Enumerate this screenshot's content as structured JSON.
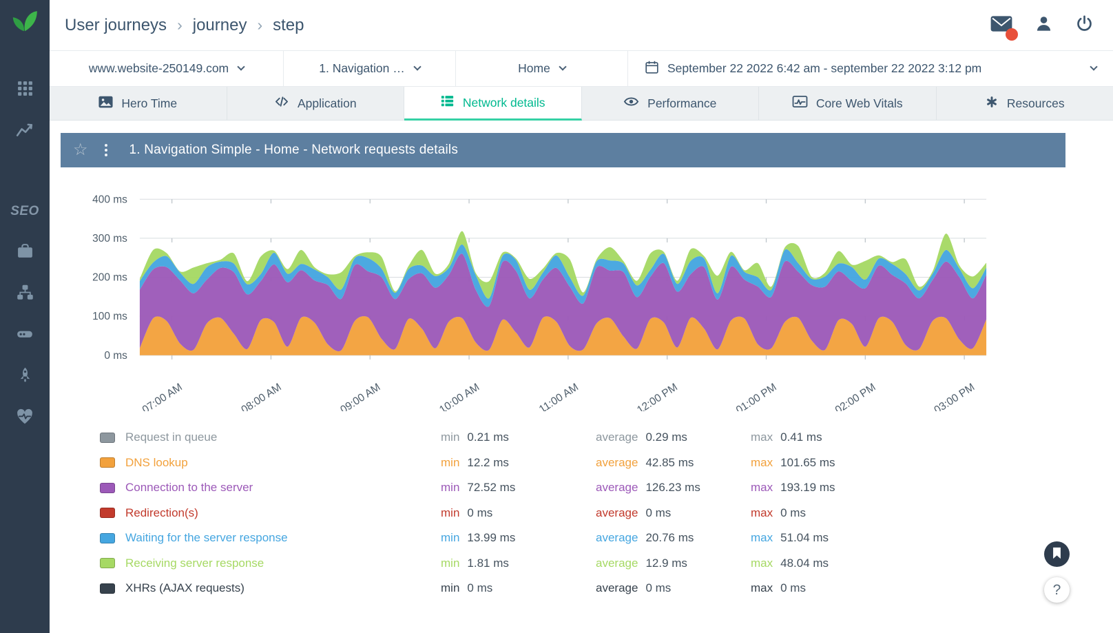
{
  "colors": {
    "accent": "#00b98f",
    "accent_underline": "#35d1a5",
    "sidebar_bg": "#2e3c4d",
    "logo_green": "#3db54a",
    "panel_header_bg": "#5d7fa0",
    "badge_red": "#e8503a"
  },
  "sidebar": {
    "seo_label": "SEO"
  },
  "header": {
    "breadcrumb": [
      "User journeys",
      "journey",
      "step"
    ]
  },
  "filters": {
    "website": "www.website-250149.com",
    "journey": "1. Navigation …",
    "step": "Home",
    "date_range": "September 22 2022 6:42 am - september 22 2022 3:12 pm"
  },
  "tabs": [
    {
      "label": "Hero Time",
      "icon": "image-icon",
      "active": false
    },
    {
      "label": "Application",
      "icon": "code-icon",
      "active": false
    },
    {
      "label": "Network details",
      "icon": "network-list-icon",
      "active": true
    },
    {
      "label": "Performance",
      "icon": "eye-icon",
      "active": false
    },
    {
      "label": "Core Web Vitals",
      "icon": "vitals-chart-icon",
      "active": false
    },
    {
      "label": "Resources",
      "icon": "resources-icon",
      "active": false
    }
  ],
  "panel": {
    "title": "1. Navigation Simple - Home - Network requests details"
  },
  "chart_data": {
    "type": "area",
    "stacked": true,
    "title": "1. Navigation Simple - Home - Network requests details",
    "ylim": [
      0,
      430
    ],
    "y_ticks": [
      {
        "value": 0,
        "label": "0 ms"
      },
      {
        "value": 100,
        "label": "100 ms"
      },
      {
        "value": 200,
        "label": "200 ms"
      },
      {
        "value": 300,
        "label": "300 ms"
      },
      {
        "value": 400,
        "label": "400 ms"
      }
    ],
    "x_ticks": [
      {
        "pos": 0.038,
        "label": "07:00 AM"
      },
      {
        "pos": 0.155,
        "label": "08:00 AM"
      },
      {
        "pos": 0.272,
        "label": "09:00 AM"
      },
      {
        "pos": 0.389,
        "label": "10:00 AM"
      },
      {
        "pos": 0.506,
        "label": "11:00 AM"
      },
      {
        "pos": 0.623,
        "label": "12:00 PM"
      },
      {
        "pos": 0.74,
        "label": "01:00 PM"
      },
      {
        "pos": 0.857,
        "label": "02:00 PM"
      },
      {
        "pos": 0.974,
        "label": "03:00 PM"
      }
    ],
    "series": [
      {
        "name": "DNS lookup",
        "color": "#f2a13c",
        "values": [
          18,
          95,
          88,
          30,
          14,
          82,
          96,
          55,
          16,
          90,
          85,
          22,
          96,
          84,
          28,
          13,
          88,
          97,
          42,
          16,
          93,
          68,
          18,
          86,
          95,
          33,
          14,
          91,
          58,
          20,
          96,
          86,
          24,
          15,
          82,
          95,
          48,
          17,
          93,
          84,
          20,
          96,
          68,
          15,
          89,
          94,
          28,
          18,
          85,
          96,
          38,
          14,
          90,
          80,
          22,
          95,
          86,
          26,
          16,
          88,
          95,
          40,
          18,
          92
        ]
      },
      {
        "name": "Connection to the server",
        "color": "#9c59b8",
        "values": [
          150,
          125,
          138,
          162,
          145,
          112,
          128,
          158,
          140,
          100,
          148,
          165,
          122,
          108,
          152,
          132,
          143,
          118,
          158,
          128,
          102,
          142,
          155,
          120,
          165,
          135,
          112,
          148,
          158,
          126,
          98,
          138,
          152,
          118,
          143,
          122,
          165,
          132,
          108,
          152,
          143,
          112,
          158,
          128,
          138,
          100,
          148,
          132,
          155,
          118,
          142,
          162,
          125,
          110,
          150,
          135,
          120,
          158,
          130,
          105,
          145,
          160,
          128,
          115
        ]
      },
      {
        "name": "Waiting for the server response",
        "color": "#45a6e0",
        "values": [
          22,
          18,
          28,
          20,
          24,
          32,
          16,
          22,
          26,
          18,
          30,
          22,
          16,
          28,
          20,
          24,
          18,
          34,
          22,
          16,
          26,
          20,
          30,
          18,
          24,
          38,
          20,
          16,
          28,
          22,
          18,
          32,
          24,
          20,
          16,
          26,
          22,
          30,
          18,
          24,
          20,
          34,
          22,
          16,
          28,
          20,
          24,
          18,
          30,
          22,
          16,
          26,
          20,
          36,
          22,
          18,
          28,
          24,
          20,
          16,
          30,
          22,
          26,
          18
        ]
      },
      {
        "name": "Receiving server response",
        "color": "#a6d964",
        "values": [
          6,
          32,
          8,
          3,
          42,
          10,
          5,
          26,
          8,
          45,
          5,
          12,
          36,
          6,
          8,
          44,
          5,
          15,
          30,
          4,
          8,
          40,
          6,
          10,
          34,
          5,
          44,
          8,
          4,
          28,
          10,
          6,
          46,
          8,
          5,
          34,
          6,
          12,
          42,
          5,
          8,
          30,
          6,
          45,
          10,
          4,
          36,
          8,
          6,
          44,
          5,
          10,
          32,
          6,
          48,
          8,
          5,
          38,
          10,
          6,
          42,
          8,
          30,
          12
        ]
      }
    ]
  },
  "legend": {
    "min_label": "min",
    "average_label": "average",
    "max_label": "max",
    "rows": [
      {
        "name": "Request in queue",
        "color": "#8d979e",
        "min": "0.21 ms",
        "average": "0.29 ms",
        "max": "0.41 ms"
      },
      {
        "name": "DNS lookup",
        "color": "#f2a13c",
        "min": "12.2 ms",
        "average": "42.85 ms",
        "max": "101.65 ms"
      },
      {
        "name": "Connection to the server",
        "color": "#9c59b8",
        "min": "72.52 ms",
        "average": "126.23 ms",
        "max": "193.19 ms"
      },
      {
        "name": "Redirection(s)",
        "color": "#c23a2c",
        "min": "0 ms",
        "average": "0 ms",
        "max": "0 ms"
      },
      {
        "name": "Waiting for the server response",
        "color": "#45a6e0",
        "min": "13.99 ms",
        "average": "20.76 ms",
        "max": "51.04 ms"
      },
      {
        "name": "Receiving server response",
        "color": "#a6d964",
        "min": "1.81 ms",
        "average": "12.9 ms",
        "max": "48.04 ms"
      },
      {
        "name": "XHRs (AJAX requests)",
        "color": "#37424d",
        "min": "0 ms",
        "average": "0 ms",
        "max": "0 ms"
      }
    ]
  },
  "footer": {
    "help_label": "?"
  }
}
